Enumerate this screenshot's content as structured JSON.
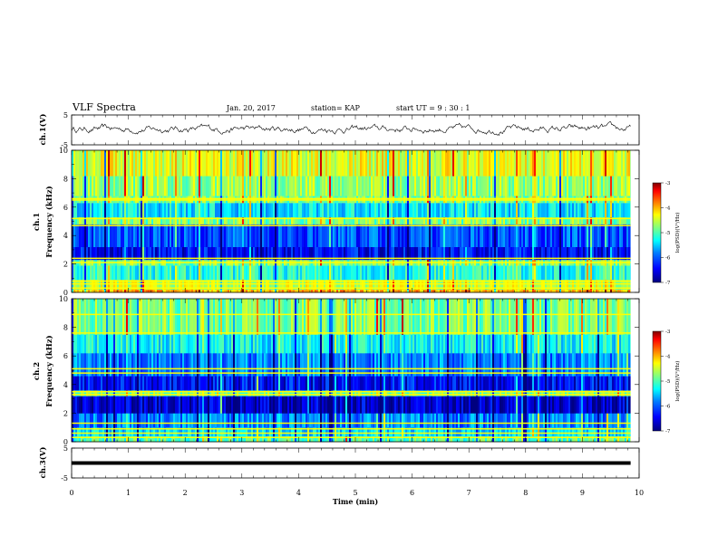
{
  "header": {
    "title": "VLF Spectra",
    "date": "Jan. 20, 2017",
    "station": "station= KAP",
    "start": "start UT =   9 : 30 : 1"
  },
  "colors": {
    "trace": "#000000",
    "background": "#ffffff",
    "colormap": [
      "#00007f",
      "#0000ff",
      "#0080ff",
      "#00ffff",
      "#80ff80",
      "#ffff00",
      "#ff8000",
      "#ff0000",
      "#7f0000"
    ]
  },
  "chart_data": [
    {
      "type": "line",
      "name": "ch1-waveform",
      "ylabel": "ch.1(V)",
      "ylim": [
        -5,
        5
      ],
      "yticks": [
        5,
        -5
      ],
      "xlim": [
        0,
        10
      ],
      "x_unit": "min",
      "trace_mean_v": 0.3,
      "trace_range_v": [
        -2.5,
        3.0
      ]
    },
    {
      "type": "heatmap",
      "name": "ch1-spectrogram",
      "ylabel": "ch.1\nFrequency (kHz)",
      "ylim": [
        0,
        10
      ],
      "yticks": [
        0,
        2,
        4,
        6,
        8,
        10
      ],
      "xlim": [
        0,
        10
      ],
      "data_end_min": 9.85,
      "colorbar": {
        "label": "log(PSD)(V²/Hz)",
        "range": [
          -7,
          -3
        ],
        "ticks": [
          "-3",
          "-4",
          "-5",
          "-6",
          "-7"
        ]
      },
      "bands": [
        {
          "f": [
            0.0,
            0.2
          ],
          "level": -4.2
        },
        {
          "f": [
            0.2,
            0.9
          ],
          "level": -4.7
        },
        {
          "f": [
            0.9,
            1.9
          ],
          "level": -5.4
        },
        {
          "f": [
            1.9,
            2.3
          ],
          "level": -5.0
        },
        {
          "f": [
            2.3,
            3.2
          ],
          "level": -6.5
        },
        {
          "f": [
            3.2,
            4.8
          ],
          "level": -6.2
        },
        {
          "f": [
            4.8,
            5.3
          ],
          "level": -5.0
        },
        {
          "f": [
            5.3,
            6.3
          ],
          "level": -5.6
        },
        {
          "f": [
            6.3,
            6.8
          ],
          "level": -5.0
        },
        {
          "f": [
            6.8,
            8.2
          ],
          "level": -4.9
        },
        {
          "f": [
            8.2,
            10.0
          ],
          "level": -4.6
        }
      ],
      "lines_khz": [
        0.3,
        0.6,
        0.8,
        2.1,
        2.4,
        4.7,
        5.2,
        6.5,
        6.6
      ]
    },
    {
      "type": "heatmap",
      "name": "ch2-spectrogram",
      "ylabel": "ch.2\nFrequency (kHz)",
      "ylim": [
        0,
        10
      ],
      "yticks": [
        0,
        2,
        4,
        6,
        8,
        10
      ],
      "xlim": [
        0,
        10
      ],
      "data_end_min": 9.85,
      "colorbar": {
        "label": "log(PSD)(V²/Hz)",
        "range": [
          -7,
          -3
        ],
        "ticks": [
          "-3",
          "-4",
          "-5",
          "-6",
          "-7"
        ]
      },
      "bands": [
        {
          "f": [
            0.0,
            0.4
          ],
          "level": -5.2
        },
        {
          "f": [
            0.4,
            1.0
          ],
          "level": -5.6
        },
        {
          "f": [
            1.0,
            2.0
          ],
          "level": -6.0
        },
        {
          "f": [
            2.0,
            3.2
          ],
          "level": -6.7
        },
        {
          "f": [
            3.2,
            3.6
          ],
          "level": -5.1
        },
        {
          "f": [
            3.6,
            4.6
          ],
          "level": -6.5
        },
        {
          "f": [
            4.6,
            6.2
          ],
          "level": -6.0
        },
        {
          "f": [
            6.2,
            7.5
          ],
          "level": -5.5
        },
        {
          "f": [
            7.5,
            10.0
          ],
          "level": -5.0
        }
      ],
      "lines_khz": [
        0.3,
        0.6,
        0.9,
        1.3,
        3.3,
        3.5,
        4.8,
        5.1,
        7.6,
        8.9
      ]
    },
    {
      "type": "line",
      "name": "ch3-waveform",
      "ylabel": "ch.3(V)",
      "ylim": [
        -5,
        5
      ],
      "yticks": [
        5,
        0,
        -5
      ],
      "xlim": [
        0,
        10
      ],
      "trace_value_v": 0
    }
  ],
  "xaxis": {
    "label": "Time (min)",
    "ticks": [
      "0",
      "1",
      "2",
      "3",
      "4",
      "5",
      "6",
      "7",
      "8",
      "9",
      "10"
    ]
  }
}
